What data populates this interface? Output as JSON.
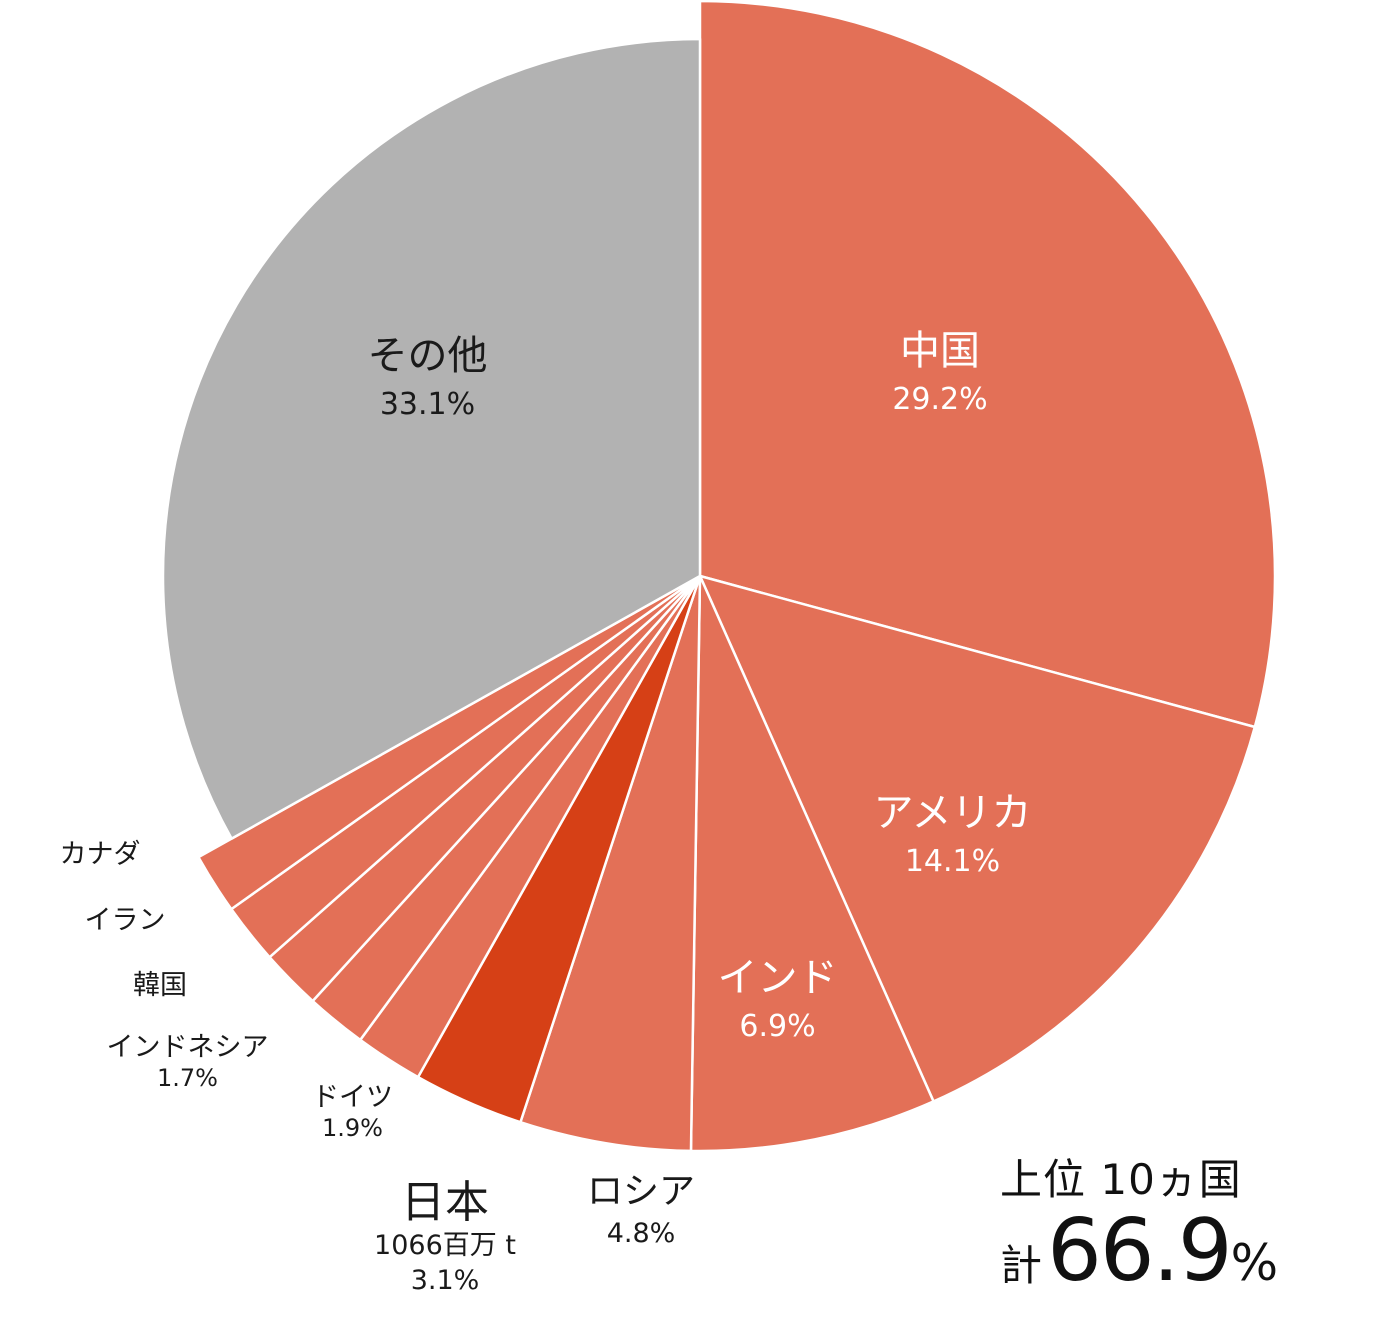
{
  "chart_data": {
    "type": "pie",
    "start_angle_deg": 0,
    "direction": "clockwise",
    "colors": {
      "top10": "#e37057",
      "japan": "#d64016",
      "other": "#b2b2b2",
      "separator": "#ffffff"
    },
    "slices": [
      {
        "name": "中国",
        "value": 29.2,
        "label": "29.2%",
        "color_key": "top10"
      },
      {
        "name": "アメリカ",
        "value": 14.1,
        "label": "14.1%",
        "color_key": "top10"
      },
      {
        "name": "インド",
        "value": 6.9,
        "label": "6.9%",
        "color_key": "top10"
      },
      {
        "name": "ロシア",
        "value": 4.8,
        "label": "4.8%",
        "color_key": "top10"
      },
      {
        "name": "日本",
        "value": 3.1,
        "label": "3.1%",
        "sub": "1066百万 t",
        "color_key": "japan"
      },
      {
        "name": "ドイツ",
        "value": 1.9,
        "label": "1.9%",
        "color_key": "top10"
      },
      {
        "name": "インドネシア",
        "value": 1.7,
        "label": "1.7%",
        "color_key": "top10"
      },
      {
        "name": "韓国",
        "value": 1.7,
        "label": "",
        "color_key": "top10"
      },
      {
        "name": "イラン",
        "value": 1.7,
        "label": "",
        "color_key": "top10"
      },
      {
        "name": "カナダ",
        "value": 1.7,
        "label": "",
        "color_key": "top10"
      },
      {
        "name": "その他",
        "value": 33.1,
        "label": "33.1%",
        "color_key": "other"
      }
    ],
    "total": {
      "line1": "上位 10ヵ国",
      "prefix": "計",
      "value": "66.9",
      "unit": "%"
    }
  }
}
